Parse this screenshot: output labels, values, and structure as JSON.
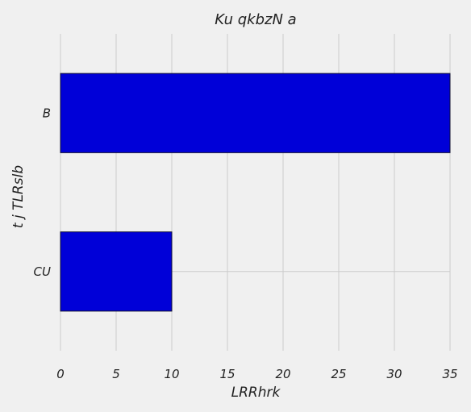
{
  "chart_data": {
    "type": "bar",
    "orientation": "horizontal",
    "title": "Ku qkbzN  a",
    "xlabel": "LRRhrk",
    "ylabel": "t j TLRslb",
    "categories": [
      "CU",
      "B"
    ],
    "values": [
      10,
      35
    ],
    "xlim": [
      0,
      35
    ],
    "xticks": [
      0,
      5,
      10,
      15,
      20,
      25,
      30,
      35
    ],
    "grid": true,
    "bar_color": "#0000d8",
    "background": "#f0f0f0"
  }
}
